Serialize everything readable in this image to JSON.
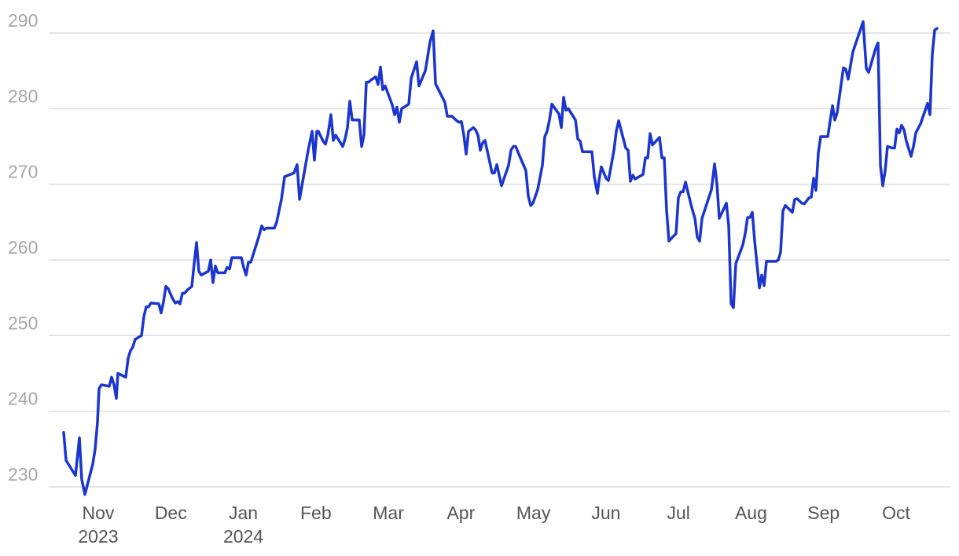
{
  "chart_data": {
    "type": "line",
    "color": "#1b35cf",
    "grid": true,
    "xlim": [
      0.45,
      12.75
    ],
    "xticks": [
      {
        "value": 1,
        "label": "Nov 2023"
      },
      {
        "value": 2,
        "label": "Dec"
      },
      {
        "value": 3,
        "label": "Jan 2024"
      },
      {
        "value": 4,
        "label": "Feb"
      },
      {
        "value": 5,
        "label": "Mar"
      },
      {
        "value": 6,
        "label": "Apr"
      },
      {
        "value": 7,
        "label": "May"
      },
      {
        "value": 8,
        "label": "Jun"
      },
      {
        "value": 9,
        "label": "Jul"
      },
      {
        "value": 10,
        "label": "Aug"
      },
      {
        "value": 11,
        "label": "Sep"
      },
      {
        "value": 12,
        "label": "Oct"
      }
    ],
    "ylim": [
      228.5,
      291
    ],
    "yticks": [
      230,
      240,
      250,
      260,
      270,
      280,
      290
    ],
    "x": [
      0.523,
      0.556,
      0.686,
      0.74,
      0.772,
      0.816,
      0.924,
      0.957,
      0.989,
      1.011,
      1.043,
      1.152,
      1.184,
      1.217,
      1.249,
      1.271,
      1.379,
      1.412,
      1.444,
      1.477,
      1.509,
      1.596,
      1.629,
      1.661,
      1.694,
      1.726,
      1.835,
      1.867,
      1.9,
      1.932,
      1.965,
      2.019,
      2.062,
      2.095,
      2.127,
      2.16,
      2.192,
      2.225,
      2.29,
      2.322,
      2.355,
      2.387,
      2.42,
      2.517,
      2.55,
      2.582,
      2.615,
      2.647,
      2.745,
      2.777,
      2.81,
      2.842,
      2.973,
      3.005,
      3.038,
      3.07,
      3.103,
      3.211,
      3.254,
      3.287,
      3.319,
      3.428,
      3.46,
      3.525,
      3.569,
      3.699,
      3.742,
      3.775,
      3.894,
      3.948,
      3.98,
      4.013,
      4.035,
      4.1,
      4.132,
      4.165,
      4.208,
      4.241,
      4.273,
      4.338,
      4.371,
      4.403,
      4.436,
      4.468,
      4.501,
      4.598,
      4.631,
      4.663,
      4.696,
      4.728,
      4.761,
      4.826,
      4.858,
      4.891,
      4.923,
      4.956,
      5.053,
      5.086,
      5.118,
      5.151,
      5.183,
      5.281,
      5.314,
      5.389,
      5.422,
      5.509,
      5.574,
      5.617,
      5.65,
      5.78,
      5.812,
      5.877,
      5.942,
      5.975,
      6.007,
      6.04,
      6.072,
      6.105,
      6.17,
      6.202,
      6.235,
      6.267,
      6.3,
      6.332,
      6.43,
      6.462,
      6.495,
      6.56,
      6.657,
      6.69,
      6.722,
      6.755,
      6.82,
      6.896,
      6.928,
      6.961,
      6.993,
      7.058,
      7.123,
      7.156,
      7.188,
      7.221,
      7.254,
      7.351,
      7.384,
      7.416,
      7.449,
      7.481,
      7.579,
      7.611,
      7.644,
      7.676,
      7.806,
      7.839,
      7.882,
      7.904,
      7.936,
      8.001,
      8.034,
      8.11,
      8.142,
      8.175,
      8.24,
      8.272,
      8.305,
      8.337,
      8.37,
      8.402,
      8.511,
      8.543,
      8.576,
      8.608,
      8.641,
      8.738,
      8.771,
      8.803,
      8.836,
      8.868,
      8.966,
      8.998,
      9.031,
      9.063,
      9.096,
      9.129,
      9.194,
      9.226,
      9.259,
      9.291,
      9.324,
      9.454,
      9.497,
      9.53,
      9.562,
      9.66,
      9.692,
      9.725,
      9.757,
      9.79,
      9.887,
      9.92,
      9.952,
      9.985,
      10.017,
      10.05,
      10.115,
      10.147,
      10.18,
      10.212,
      10.342,
      10.375,
      10.407,
      10.44,
      10.472,
      10.57,
      10.602,
      10.635,
      10.7,
      10.733,
      10.798,
      10.83,
      10.863,
      10.895,
      10.928,
      10.96,
      11.058,
      11.123,
      11.155,
      11.188,
      11.274,
      11.307,
      11.339,
      11.404,
      11.545,
      11.589,
      11.621,
      11.719,
      11.751,
      11.784,
      11.816,
      11.849,
      11.881,
      11.946,
      11.979,
      12.011,
      12.044,
      12.076,
      12.109,
      12.141,
      12.206,
      12.239,
      12.272,
      12.337,
      12.434,
      12.467,
      12.499,
      12.532,
      12.564
    ],
    "values": [
      237.2,
      233.5,
      231.5,
      236.5,
      231,
      229,
      233,
      235,
      238.5,
      243,
      243.5,
      243.3,
      244.5,
      243.5,
      241.7,
      245,
      244.5,
      247,
      248,
      248.5,
      249.5,
      250,
      252.5,
      253.8,
      253.8,
      254.3,
      254.2,
      253,
      254.5,
      256.5,
      256.2,
      255,
      254.3,
      254.5,
      254.2,
      255.6,
      255.6,
      256,
      256.5,
      259.5,
      262.3,
      258.5,
      258,
      258.5,
      260,
      257,
      259.2,
      258.3,
      258.3,
      259,
      258.8,
      260.3,
      260.3,
      259,
      258,
      259.7,
      259.7,
      263,
      264.5,
      264,
      264.2,
      264.2,
      265,
      268,
      271,
      271.5,
      272.6,
      268,
      274.5,
      277,
      273.2,
      277,
      277,
      275.7,
      275.3,
      276.5,
      279.2,
      275.8,
      276.5,
      275.5,
      275,
      276,
      277.5,
      281,
      278.5,
      278.5,
      275,
      276.5,
      283.5,
      283.5,
      283.8,
      284.2,
      283.2,
      285.5,
      282.5,
      283,
      280.5,
      279.2,
      280.2,
      278.2,
      280,
      280.6,
      284,
      286.2,
      283,
      285,
      288.8,
      290.3,
      283.3,
      280.8,
      279,
      279,
      278.4,
      278.2,
      278.3,
      276.5,
      274,
      277,
      277.5,
      277.2,
      276.5,
      274.5,
      275.5,
      275.8,
      271.5,
      271.5,
      272.6,
      269.8,
      272.5,
      274.5,
      275,
      275,
      273.5,
      271.8,
      268.5,
      267.2,
      267.5,
      269.3,
      272.5,
      276.3,
      277,
      278.5,
      280.6,
      279.3,
      277.5,
      281.5,
      279.8,
      280,
      278.5,
      276,
      275.7,
      274.3,
      274.3,
      271,
      268.8,
      270.5,
      272.3,
      270.8,
      270.5,
      274.5,
      277,
      278.4,
      276,
      274.8,
      274.5,
      270.4,
      271.2,
      270.7,
      271.3,
      273.5,
      273.5,
      276.7,
      275.2,
      276.2,
      273.5,
      273.5,
      266.5,
      262.5,
      263.5,
      268.2,
      269,
      269,
      270.3,
      269,
      266.5,
      265.5,
      263,
      262.5,
      265.5,
      269.3,
      272.7,
      270,
      265.5,
      267.5,
      264.5,
      254.2,
      253.7,
      259.5,
      262,
      263.5,
      265.6,
      265.6,
      266.3,
      262.5,
      256.3,
      258,
      256.6,
      259.8,
      259.8,
      260,
      261,
      266.5,
      267.2,
      266.3,
      268,
      268.1,
      267.5,
      267.4,
      268.2,
      268.3,
      270.8,
      269.2,
      274.2,
      276.3,
      276.3,
      280.4,
      278.5,
      279.5,
      285.4,
      285.2,
      283.9,
      287.5,
      291.5,
      285.3,
      284.8,
      288,
      288.7,
      272.5,
      269.8,
      271.8,
      275,
      274.8,
      274.8,
      277.3,
      276.8,
      277.8,
      277.2,
      275.7,
      273.7,
      275,
      276.8,
      278,
      280.7,
      279.2,
      287.2,
      290.4,
      290.6
    ]
  }
}
